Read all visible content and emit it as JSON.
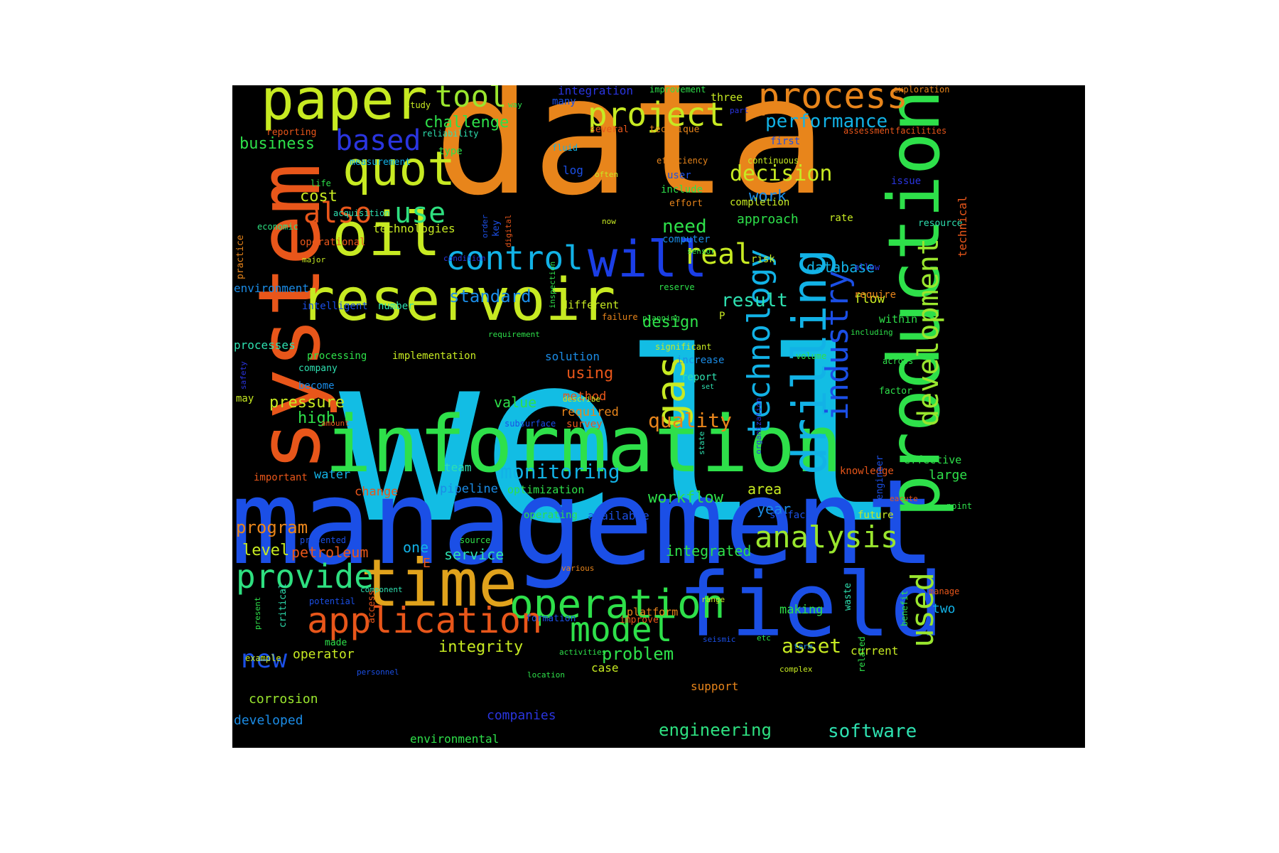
{
  "background": "#000000",
  "words": [
    {
      "text": "well",
      "color": "#12bde4",
      "dir": "h"
    },
    {
      "text": "data",
      "color": "#e8851b",
      "dir": "h"
    },
    {
      "text": "management",
      "color": "#1b4fe6",
      "dir": "h"
    },
    {
      "text": "information",
      "color": "#2ee04a",
      "dir": "h"
    },
    {
      "text": "system",
      "color": "#e8561a",
      "dir": "v"
    },
    {
      "text": "production",
      "color": "#2ee04a",
      "dir": "v"
    },
    {
      "text": "field",
      "color": "#1b4fe6",
      "dir": "h"
    },
    {
      "text": "time",
      "color": "#e0a21c",
      "dir": "h"
    },
    {
      "text": "reservoir",
      "color": "#c7ea22",
      "dir": "h"
    },
    {
      "text": "paper",
      "color": "#c7ea22",
      "dir": "h"
    },
    {
      "text": "oil",
      "color": "#c7ea22",
      "dir": "h"
    },
    {
      "text": "operation",
      "color": "#2ee04a",
      "dir": "h"
    },
    {
      "text": "drilling",
      "color": "#12b2e6",
      "dir": "v"
    },
    {
      "text": "will",
      "color": "#1b3ee6",
      "dir": "h"
    },
    {
      "text": "quot",
      "color": "#c7ea22",
      "dir": "h"
    },
    {
      "text": "application",
      "color": "#e8561a",
      "dir": "h"
    },
    {
      "text": "gas",
      "color": "#c7ea22",
      "dir": "v"
    },
    {
      "text": "process",
      "color": "#e8851b",
      "dir": "h"
    },
    {
      "text": "project",
      "color": "#c7ea22",
      "dir": "h"
    },
    {
      "text": "control",
      "color": "#12b2e6",
      "dir": "h"
    },
    {
      "text": "model",
      "color": "#2ee04a",
      "dir": "h"
    },
    {
      "text": "provide",
      "color": "#2ee080",
      "dir": "h"
    },
    {
      "text": "technology",
      "color": "#12b2e6",
      "dir": "v"
    },
    {
      "text": "industry",
      "color": "#1b4fe6",
      "dir": "v"
    },
    {
      "text": "development",
      "color": "#9ae62e",
      "dir": "v"
    },
    {
      "text": "used",
      "color": "#9ae62e",
      "dir": "v"
    },
    {
      "text": "analysis",
      "color": "#9ae62e",
      "dir": "h"
    },
    {
      "text": "real",
      "color": "#c7ea22",
      "dir": "h"
    },
    {
      "text": "tool",
      "color": "#9ae62e",
      "dir": "h"
    },
    {
      "text": "based",
      "color": "#2a35e0",
      "dir": "h"
    },
    {
      "text": "also",
      "color": "#e8561a",
      "dir": "h"
    },
    {
      "text": "use",
      "color": "#2ee080",
      "dir": "h"
    },
    {
      "text": "new",
      "color": "#1b4fe6",
      "dir": "h"
    },
    {
      "text": "decision",
      "color": "#c7ea22",
      "dir": "h"
    },
    {
      "text": "performance",
      "color": "#12b2e6",
      "dir": "h"
    },
    {
      "text": "monitoring",
      "color": "#12b2e6",
      "dir": "h"
    },
    {
      "text": "quality",
      "color": "#e8851b",
      "dir": "h"
    },
    {
      "text": "asset",
      "color": "#c7ea22",
      "dir": "h"
    },
    {
      "text": "operator",
      "color": "#c7ea22",
      "dir": "h"
    },
    {
      "text": "integrity",
      "color": "#c7ea22",
      "dir": "h"
    },
    {
      "text": "problem",
      "color": "#2ee04a",
      "dir": "h"
    },
    {
      "text": "software",
      "color": "#2ee0b0",
      "dir": "h"
    },
    {
      "text": "engineering",
      "color": "#2ee080",
      "dir": "h"
    },
    {
      "text": "workflow",
      "color": "#2ee04a",
      "dir": "h"
    },
    {
      "text": "program",
      "color": "#e8851b",
      "dir": "h"
    },
    {
      "text": "standard",
      "color": "#1b8ce6",
      "dir": "h"
    },
    {
      "text": "result",
      "color": "#2ee0b0",
      "dir": "h"
    },
    {
      "text": "pressure",
      "color": "#c7ea22",
      "dir": "h"
    },
    {
      "text": "design",
      "color": "#2ee04a",
      "dir": "h"
    },
    {
      "text": "database",
      "color": "#12b2e6",
      "dir": "h"
    },
    {
      "text": "challenge",
      "color": "#2ee04a",
      "dir": "h"
    },
    {
      "text": "business",
      "color": "#2ee04a",
      "dir": "h"
    },
    {
      "text": "cost",
      "color": "#c7ea22",
      "dir": "h"
    },
    {
      "text": "need",
      "color": "#2ee04a",
      "dir": "h"
    },
    {
      "text": "work",
      "color": "#1b8ce6",
      "dir": "h"
    },
    {
      "text": "using",
      "color": "#e8561a",
      "dir": "h"
    },
    {
      "text": "high",
      "color": "#2ee04a",
      "dir": "h"
    },
    {
      "text": "level",
      "color": "#c7ea22",
      "dir": "h"
    },
    {
      "text": "petroleum",
      "color": "#e8561a",
      "dir": "h"
    },
    {
      "text": "service",
      "color": "#2ee0b0",
      "dir": "h"
    },
    {
      "text": "integrated",
      "color": "#2ee04a",
      "dir": "h"
    },
    {
      "text": "year",
      "color": "#1b8ce6",
      "dir": "h"
    },
    {
      "text": "area",
      "color": "#c7ea22",
      "dir": "h"
    },
    {
      "text": "value",
      "color": "#2ee04a",
      "dir": "h"
    },
    {
      "text": "one",
      "color": "#12b2e6",
      "dir": "h"
    },
    {
      "text": "corrosion",
      "color": "#9ae62e",
      "dir": "h"
    },
    {
      "text": "developed",
      "color": "#1b8ce6",
      "dir": "h"
    },
    {
      "text": "companies",
      "color": "#2a35e0",
      "dir": "h"
    },
    {
      "text": "environmental",
      "color": "#2ee04a",
      "dir": "h"
    },
    {
      "text": "approach",
      "color": "#2ee04a",
      "dir": "h"
    },
    {
      "text": "method",
      "color": "#e8561a",
      "dir": "h"
    },
    {
      "text": "required",
      "color": "#e8851b",
      "dir": "h"
    },
    {
      "text": "flow",
      "color": "#c7ea22",
      "dir": "h"
    },
    {
      "text": "large",
      "color": "#2ee04a",
      "dir": "h"
    },
    {
      "text": "two",
      "color": "#12b2e6",
      "dir": "h"
    },
    {
      "text": "making",
      "color": "#2ee04a",
      "dir": "h"
    },
    {
      "text": "current",
      "color": "#c7ea22",
      "dir": "h"
    },
    {
      "text": "case",
      "color": "#c7ea22",
      "dir": "h"
    },
    {
      "text": "support",
      "color": "#e8851b",
      "dir": "h"
    },
    {
      "text": "platform",
      "color": "#e8851b",
      "dir": "h"
    },
    {
      "text": "optimization",
      "color": "#2ee04a",
      "dir": "h"
    },
    {
      "text": "pipeline",
      "color": "#1b8ce6",
      "dir": "h"
    },
    {
      "text": "change",
      "color": "#e8561a",
      "dir": "h"
    },
    {
      "text": "team",
      "color": "#2ee0b0",
      "dir": "h"
    },
    {
      "text": "water",
      "color": "#12b2e6",
      "dir": "h"
    },
    {
      "text": "important",
      "color": "#e8561a",
      "dir": "h"
    },
    {
      "text": "environment",
      "color": "#1b8ce6",
      "dir": "h"
    },
    {
      "text": "processes",
      "color": "#2ee0b0",
      "dir": "h"
    },
    {
      "text": "processing",
      "color": "#2ee04a",
      "dir": "h"
    },
    {
      "text": "implementation",
      "color": "#c7ea22",
      "dir": "h"
    },
    {
      "text": "solution",
      "color": "#1b8ce6",
      "dir": "h"
    },
    {
      "text": "company",
      "color": "#2ee0b0",
      "dir": "h"
    },
    {
      "text": "become",
      "color": "#1b8ce6",
      "dir": "h"
    },
    {
      "text": "intelligent",
      "color": "#1b4fe6",
      "dir": "h"
    },
    {
      "text": "number",
      "color": "#2ee0b0",
      "dir": "h"
    },
    {
      "text": "different",
      "color": "#c7ea22",
      "dir": "h"
    },
    {
      "text": "technologies",
      "color": "#c7ea22",
      "dir": "h"
    },
    {
      "text": "operational",
      "color": "#e8561a",
      "dir": "h"
    },
    {
      "text": "economic",
      "color": "#2ee080",
      "dir": "h"
    },
    {
      "text": "acquisition",
      "color": "#2ee0b0",
      "dir": "h"
    },
    {
      "text": "life",
      "color": "#2ee04a",
      "dir": "h"
    },
    {
      "text": "measurement",
      "color": "#12b2e6",
      "dir": "h"
    },
    {
      "text": "type",
      "color": "#2ee04a",
      "dir": "h"
    },
    {
      "text": "reliability",
      "color": "#2ee0b0",
      "dir": "h"
    },
    {
      "text": "study",
      "color": "#c7ea22",
      "dir": "h"
    },
    {
      "text": "reporting",
      "color": "#e8561a",
      "dir": "h"
    },
    {
      "text": "way",
      "color": "#2ee04a",
      "dir": "h"
    },
    {
      "text": "integration",
      "color": "#2a35e0",
      "dir": "h"
    },
    {
      "text": "improvement",
      "color": "#2ee04a",
      "dir": "h"
    },
    {
      "text": "many",
      "color": "#1b4fe6",
      "dir": "h"
    },
    {
      "text": "three",
      "color": "#c7ea22",
      "dir": "h"
    },
    {
      "text": "several",
      "color": "#e8561a",
      "dir": "h"
    },
    {
      "text": "technique",
      "color": "#e8851b",
      "dir": "h"
    },
    {
      "text": "part",
      "color": "#2a35e0",
      "dir": "h"
    },
    {
      "text": "first",
      "color": "#1b4fe6",
      "dir": "h"
    },
    {
      "text": "fluid",
      "color": "#12b2e6",
      "dir": "h"
    },
    {
      "text": "efficiency",
      "color": "#e8851b",
      "dir": "h"
    },
    {
      "text": "continuous",
      "color": "#c7ea22",
      "dir": "h"
    },
    {
      "text": "log",
      "color": "#1b4fe6",
      "dir": "h"
    },
    {
      "text": "often",
      "color": "#c7ea22",
      "dir": "h"
    },
    {
      "text": "user",
      "color": "#1b4fe6",
      "dir": "h"
    },
    {
      "text": "include",
      "color": "#2ee04a",
      "dir": "h"
    },
    {
      "text": "effort",
      "color": "#e8851b",
      "dir": "h"
    },
    {
      "text": "completion",
      "color": "#c7ea22",
      "dir": "h"
    },
    {
      "text": "now",
      "color": "#c7ea22",
      "dir": "h"
    },
    {
      "text": "rate",
      "color": "#c7ea22",
      "dir": "h"
    },
    {
      "text": "resource",
      "color": "#2ee0b0",
      "dir": "h"
    },
    {
      "text": "computer",
      "color": "#1b8ce6",
      "dir": "h"
    },
    {
      "text": "sensor",
      "color": "#2ee04a",
      "dir": "h"
    },
    {
      "text": "risk",
      "color": "#c7ea22",
      "dir": "h"
    },
    {
      "text": "condition",
      "color": "#2a35e0",
      "dir": "h"
    },
    {
      "text": "major",
      "color": "#c7ea22",
      "dir": "h"
    },
    {
      "text": "allow",
      "color": "#2a35e0",
      "dir": "h"
    },
    {
      "text": "require",
      "color": "#e8851b",
      "dir": "h"
    },
    {
      "text": "reserve",
      "color": "#2ee04a",
      "dir": "h"
    },
    {
      "text": "planning",
      "color": "#2ee04a",
      "dir": "h"
    },
    {
      "text": "P",
      "color": "#c7ea22",
      "dir": "h"
    },
    {
      "text": "failure",
      "color": "#e8851b",
      "dir": "h"
    },
    {
      "text": "within",
      "color": "#2ee04a",
      "dir": "h"
    },
    {
      "text": "including",
      "color": "#2ee04a",
      "dir": "h"
    },
    {
      "text": "requirement",
      "color": "#2ee04a",
      "dir": "h"
    },
    {
      "text": "significant",
      "color": "#c7ea22",
      "dir": "h"
    },
    {
      "text": "volume",
      "color": "#2ee04a",
      "dir": "h"
    },
    {
      "text": "increase",
      "color": "#1b8ce6",
      "dir": "h"
    },
    {
      "text": "across",
      "color": "#2ee04a",
      "dir": "h"
    },
    {
      "text": "report",
      "color": "#2ee0b0",
      "dir": "h"
    },
    {
      "text": "set",
      "color": "#2ee0b0",
      "dir": "h"
    },
    {
      "text": "factor",
      "color": "#2ee04a",
      "dir": "h"
    },
    {
      "text": "describe",
      "color": "#c7ea22",
      "dir": "h"
    },
    {
      "text": "subsurface",
      "color": "#1b4fe6",
      "dir": "h"
    },
    {
      "text": "survey",
      "color": "#e8561a",
      "dir": "h"
    },
    {
      "text": "amount",
      "color": "#e8561a",
      "dir": "h"
    },
    {
      "text": "may",
      "color": "#c7ea22",
      "dir": "h"
    },
    {
      "text": "effective",
      "color": "#2ee04a",
      "dir": "h"
    },
    {
      "text": "knowledge",
      "color": "#e8561a",
      "dir": "h"
    },
    {
      "text": "eacute",
      "color": "#e8561a",
      "dir": "h"
    },
    {
      "text": "point",
      "color": "#2ee04a",
      "dir": "h"
    },
    {
      "text": "surface",
      "color": "#1b4fe6",
      "dir": "h"
    },
    {
      "text": "future",
      "color": "#c7ea22",
      "dir": "h"
    },
    {
      "text": "operating",
      "color": "#2ee04a",
      "dir": "h"
    },
    {
      "text": "available",
      "color": "#1b4fe6",
      "dir": "h"
    },
    {
      "text": "presented",
      "color": "#1b4fe6",
      "dir": "h"
    },
    {
      "text": "source",
      "color": "#2ee04a",
      "dir": "h"
    },
    {
      "text": "E",
      "color": "#e8561a",
      "dir": "h"
    },
    {
      "text": "various",
      "color": "#e8851b",
      "dir": "h"
    },
    {
      "text": "component",
      "color": "#2ee0b0",
      "dir": "h"
    },
    {
      "text": "potential",
      "color": "#1b4fe6",
      "dir": "h"
    },
    {
      "text": "range",
      "color": "#c7ea22",
      "dir": "h"
    },
    {
      "text": "improve",
      "color": "#e8561a",
      "dir": "h"
    },
    {
      "text": "manage",
      "color": "#e8561a",
      "dir": "h"
    },
    {
      "text": "formation",
      "color": "#1b4fe6",
      "dir": "h"
    },
    {
      "text": "etc",
      "color": "#2ee04a",
      "dir": "h"
    },
    {
      "text": "term",
      "color": "#1b8ce6",
      "dir": "h"
    },
    {
      "text": "seismic",
      "color": "#1b4fe6",
      "dir": "h"
    },
    {
      "text": "made",
      "color": "#2ee04a",
      "dir": "h"
    },
    {
      "text": "example",
      "color": "#c7ea22",
      "dir": "h"
    },
    {
      "text": "activities",
      "color": "#2ee04a",
      "dir": "h"
    },
    {
      "text": "complex",
      "color": "#c7ea22",
      "dir": "h"
    },
    {
      "text": "personnel",
      "color": "#1b4fe6",
      "dir": "h"
    },
    {
      "text": "location",
      "color": "#2ee04a",
      "dir": "h"
    },
    {
      "text": "exploration",
      "color": "#e8851b",
      "dir": "h"
    },
    {
      "text": "assessment",
      "color": "#e8561a",
      "dir": "h"
    },
    {
      "text": "facilities",
      "color": "#e8561a",
      "dir": "h"
    },
    {
      "text": "issue",
      "color": "#2a35e0",
      "dir": "h"
    },
    {
      "text": "technical",
      "color": "#e8561a",
      "dir": "v"
    },
    {
      "text": "practice",
      "color": "#e8851b",
      "dir": "v"
    },
    {
      "text": "safety",
      "color": "#2a35e0",
      "dir": "v"
    },
    {
      "text": "key",
      "color": "#1b4fe6",
      "dir": "v"
    },
    {
      "text": "order",
      "color": "#1b4fe6",
      "dir": "v"
    },
    {
      "text": "digital",
      "color": "#e8561a",
      "dir": "v"
    },
    {
      "text": "inspection",
      "color": "#2ee04a",
      "dir": "v"
    },
    {
      "text": "organization",
      "color": "#2a35e0",
      "dir": "v"
    },
    {
      "text": "state",
      "color": "#2ee0b0",
      "dir": "v"
    },
    {
      "text": "engineer",
      "color": "#1b4fe6",
      "dir": "v"
    },
    {
      "text": "critical",
      "color": "#2ee0b0",
      "dir": "v"
    },
    {
      "text": "present",
      "color": "#2ee04a",
      "dir": "v"
    },
    {
      "text": "access",
      "color": "#e8561a",
      "dir": "v"
    },
    {
      "text": "waste",
      "color": "#2ee0b0",
      "dir": "v"
    },
    {
      "text": "benefit",
      "color": "#2ee04a",
      "dir": "v"
    },
    {
      "text": "related",
      "color": "#2ee04a",
      "dir": "v"
    }
  ]
}
